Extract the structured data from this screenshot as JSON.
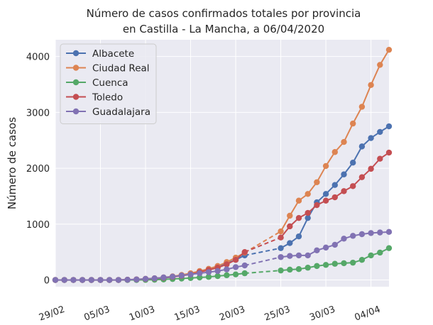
{
  "chart_data": {
    "type": "line",
    "title": [
      "Número de casos confirmados totales por provincia",
      "en Castilla - La Mancha, a 06/04/2020"
    ],
    "xlabel": "",
    "ylabel": "Número de casos",
    "ylim": [
      -120,
      4300
    ],
    "xlim": [
      "2020-02-29",
      "2020-04-06"
    ],
    "yticks": [
      0,
      1000,
      2000,
      3000,
      4000
    ],
    "xticks": [
      {
        "date": "2020-02-29",
        "label": "29/02"
      },
      {
        "date": "2020-03-05",
        "label": "05/03"
      },
      {
        "date": "2020-03-10",
        "label": "10/03"
      },
      {
        "date": "2020-03-15",
        "label": "15/03"
      },
      {
        "date": "2020-03-20",
        "label": "20/03"
      },
      {
        "date": "2020-03-25",
        "label": "25/03"
      },
      {
        "date": "2020-03-30",
        "label": "30/03"
      },
      {
        "date": "2020-04-04",
        "label": "04/04"
      }
    ],
    "grid": true,
    "legend_position": "top-left",
    "background": "#eaeaf2",
    "series": [
      {
        "name": "Albacete",
        "color": "#4c72b0",
        "points": [
          [
            "2020-02-29",
            0
          ],
          [
            "2020-03-01",
            0
          ],
          [
            "2020-03-02",
            0
          ],
          [
            "2020-03-03",
            0
          ],
          [
            "2020-03-04",
            0
          ],
          [
            "2020-03-05",
            0
          ],
          [
            "2020-03-06",
            0
          ],
          [
            "2020-03-07",
            0
          ],
          [
            "2020-03-08",
            2
          ],
          [
            "2020-03-09",
            5
          ],
          [
            "2020-03-10",
            10
          ],
          [
            "2020-03-11",
            20
          ],
          [
            "2020-03-12",
            35
          ],
          [
            "2020-03-13",
            55
          ],
          [
            "2020-03-14",
            80
          ],
          [
            "2020-03-15",
            110
          ],
          [
            "2020-03-16",
            150
          ],
          [
            "2020-03-17",
            190
          ],
          [
            "2020-03-18",
            240
          ],
          [
            "2020-03-19",
            300
          ],
          [
            "2020-03-20",
            360
          ],
          [
            "2020-03-21",
            440
          ],
          [
            "2020-03-25",
            570
          ],
          [
            "2020-03-26",
            660
          ],
          [
            "2020-03-27",
            780
          ],
          [
            "2020-03-28",
            1110
          ],
          [
            "2020-03-29",
            1390
          ],
          [
            "2020-03-30",
            1540
          ],
          [
            "2020-03-31",
            1700
          ],
          [
            "2020-04-01",
            1890
          ],
          [
            "2020-04-02",
            2100
          ],
          [
            "2020-04-03",
            2390
          ],
          [
            "2020-04-04",
            2540
          ],
          [
            "2020-04-05",
            2650
          ],
          [
            "2020-04-06",
            2750
          ]
        ]
      },
      {
        "name": "Ciudad Real",
        "color": "#dd8452",
        "points": [
          [
            "2020-02-29",
            0
          ],
          [
            "2020-03-01",
            0
          ],
          [
            "2020-03-02",
            0
          ],
          [
            "2020-03-03",
            0
          ],
          [
            "2020-03-04",
            0
          ],
          [
            "2020-03-05",
            0
          ],
          [
            "2020-03-06",
            0
          ],
          [
            "2020-03-07",
            0
          ],
          [
            "2020-03-08",
            5
          ],
          [
            "2020-03-09",
            10
          ],
          [
            "2020-03-10",
            20
          ],
          [
            "2020-03-11",
            30
          ],
          [
            "2020-03-12",
            45
          ],
          [
            "2020-03-13",
            65
          ],
          [
            "2020-03-14",
            90
          ],
          [
            "2020-03-15",
            120
          ],
          [
            "2020-03-16",
            160
          ],
          [
            "2020-03-17",
            200
          ],
          [
            "2020-03-18",
            250
          ],
          [
            "2020-03-19",
            320
          ],
          [
            "2020-03-20",
            400
          ],
          [
            "2020-03-21",
            490
          ],
          [
            "2020-03-25",
            870
          ],
          [
            "2020-03-26",
            1150
          ],
          [
            "2020-03-27",
            1420
          ],
          [
            "2020-03-28",
            1540
          ],
          [
            "2020-03-29",
            1750
          ],
          [
            "2020-03-30",
            2040
          ],
          [
            "2020-03-31",
            2290
          ],
          [
            "2020-04-01",
            2470
          ],
          [
            "2020-04-02",
            2800
          ],
          [
            "2020-04-03",
            3100
          ],
          [
            "2020-04-04",
            3490
          ],
          [
            "2020-04-05",
            3850
          ],
          [
            "2020-04-06",
            4120
          ]
        ]
      },
      {
        "name": "Cuenca",
        "color": "#55a868",
        "points": [
          [
            "2020-02-29",
            0
          ],
          [
            "2020-03-01",
            0
          ],
          [
            "2020-03-02",
            0
          ],
          [
            "2020-03-03",
            0
          ],
          [
            "2020-03-04",
            0
          ],
          [
            "2020-03-05",
            0
          ],
          [
            "2020-03-06",
            0
          ],
          [
            "2020-03-07",
            0
          ],
          [
            "2020-03-08",
            0
          ],
          [
            "2020-03-09",
            0
          ],
          [
            "2020-03-10",
            2
          ],
          [
            "2020-03-11",
            5
          ],
          [
            "2020-03-12",
            10
          ],
          [
            "2020-03-13",
            18
          ],
          [
            "2020-03-14",
            25
          ],
          [
            "2020-03-15",
            35
          ],
          [
            "2020-03-16",
            45
          ],
          [
            "2020-03-17",
            55
          ],
          [
            "2020-03-18",
            70
          ],
          [
            "2020-03-19",
            85
          ],
          [
            "2020-03-20",
            100
          ],
          [
            "2020-03-21",
            120
          ],
          [
            "2020-03-25",
            170
          ],
          [
            "2020-03-26",
            185
          ],
          [
            "2020-03-27",
            195
          ],
          [
            "2020-03-28",
            220
          ],
          [
            "2020-03-29",
            250
          ],
          [
            "2020-03-30",
            270
          ],
          [
            "2020-03-31",
            290
          ],
          [
            "2020-04-01",
            300
          ],
          [
            "2020-04-02",
            310
          ],
          [
            "2020-04-03",
            360
          ],
          [
            "2020-04-04",
            440
          ],
          [
            "2020-04-05",
            490
          ],
          [
            "2020-04-06",
            570
          ]
        ]
      },
      {
        "name": "Toledo",
        "color": "#c44e52",
        "points": [
          [
            "2020-02-29",
            0
          ],
          [
            "2020-03-01",
            0
          ],
          [
            "2020-03-02",
            0
          ],
          [
            "2020-03-03",
            0
          ],
          [
            "2020-03-04",
            0
          ],
          [
            "2020-03-05",
            0
          ],
          [
            "2020-03-06",
            0
          ],
          [
            "2020-03-07",
            0
          ],
          [
            "2020-03-08",
            5
          ],
          [
            "2020-03-09",
            10
          ],
          [
            "2020-03-10",
            18
          ],
          [
            "2020-03-11",
            28
          ],
          [
            "2020-03-12",
            40
          ],
          [
            "2020-03-13",
            55
          ],
          [
            "2020-03-14",
            75
          ],
          [
            "2020-03-15",
            100
          ],
          [
            "2020-03-16",
            140
          ],
          [
            "2020-03-17",
            180
          ],
          [
            "2020-03-18",
            220
          ],
          [
            "2020-03-19",
            280
          ],
          [
            "2020-03-20",
            360
          ],
          [
            "2020-03-21",
            500
          ],
          [
            "2020-03-25",
            760
          ],
          [
            "2020-03-26",
            960
          ],
          [
            "2020-03-27",
            1110
          ],
          [
            "2020-03-28",
            1200
          ],
          [
            "2020-03-29",
            1340
          ],
          [
            "2020-03-30",
            1420
          ],
          [
            "2020-03-31",
            1480
          ],
          [
            "2020-04-01",
            1590
          ],
          [
            "2020-04-02",
            1680
          ],
          [
            "2020-04-03",
            1840
          ],
          [
            "2020-04-04",
            1990
          ],
          [
            "2020-04-05",
            2170
          ],
          [
            "2020-04-06",
            2280
          ]
        ]
      },
      {
        "name": "Guadalajara",
        "color": "#8172b3",
        "points": [
          [
            "2020-02-29",
            0
          ],
          [
            "2020-03-01",
            0
          ],
          [
            "2020-03-02",
            0
          ],
          [
            "2020-03-03",
            0
          ],
          [
            "2020-03-04",
            0
          ],
          [
            "2020-03-05",
            0
          ],
          [
            "2020-03-06",
            0
          ],
          [
            "2020-03-07",
            0
          ],
          [
            "2020-03-08",
            5
          ],
          [
            "2020-03-09",
            10
          ],
          [
            "2020-03-10",
            20
          ],
          [
            "2020-03-11",
            30
          ],
          [
            "2020-03-12",
            45
          ],
          [
            "2020-03-13",
            60
          ],
          [
            "2020-03-14",
            80
          ],
          [
            "2020-03-15",
            100
          ],
          [
            "2020-03-16",
            120
          ],
          [
            "2020-03-17",
            140
          ],
          [
            "2020-03-18",
            160
          ],
          [
            "2020-03-19",
            190
          ],
          [
            "2020-03-20",
            230
          ],
          [
            "2020-03-21",
            260
          ],
          [
            "2020-03-25",
            410
          ],
          [
            "2020-03-26",
            430
          ],
          [
            "2020-03-27",
            440
          ],
          [
            "2020-03-28",
            440
          ],
          [
            "2020-03-29",
            530
          ],
          [
            "2020-03-30",
            580
          ],
          [
            "2020-03-31",
            630
          ],
          [
            "2020-04-01",
            740
          ],
          [
            "2020-04-02",
            790
          ],
          [
            "2020-04-03",
            820
          ],
          [
            "2020-04-04",
            840
          ],
          [
            "2020-04-05",
            850
          ],
          [
            "2020-04-06",
            860
          ]
        ]
      }
    ],
    "dashed_gaps": [
      [
        "2020-03-21",
        "2020-03-25"
      ]
    ]
  }
}
